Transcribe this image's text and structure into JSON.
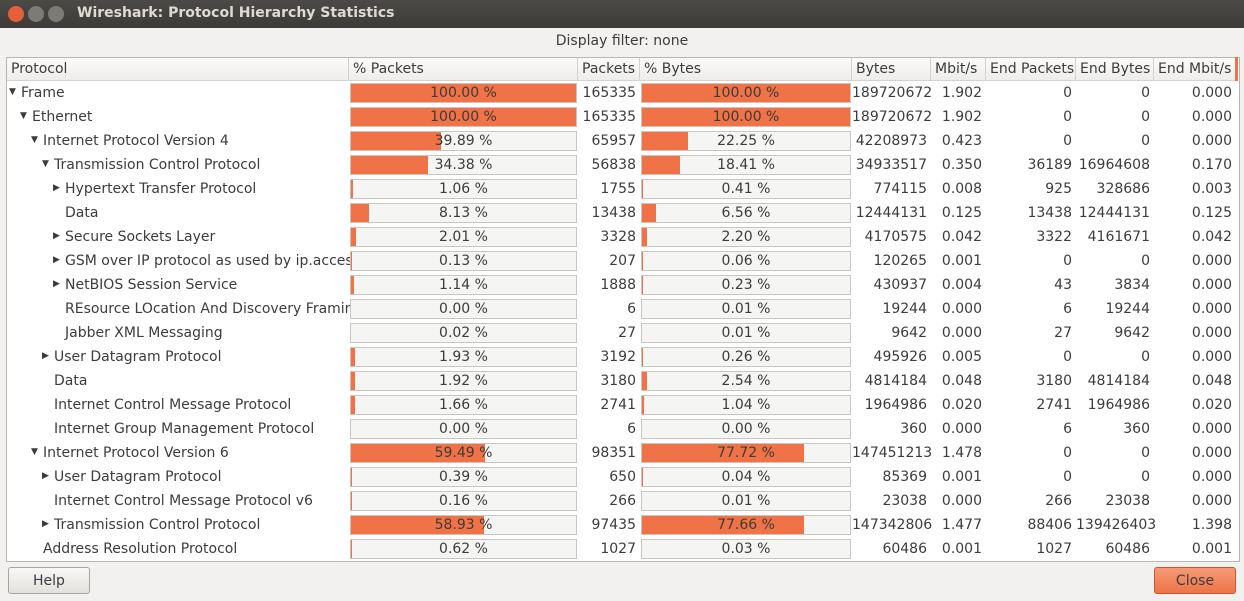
{
  "window": {
    "title": "Wireshark: Protocol Hierarchy Statistics"
  },
  "filter": "Display filter: none",
  "columns": [
    "Protocol",
    "% Packets",
    "Packets",
    "% Bytes",
    "Bytes",
    "Mbit/s",
    "End Packets",
    "End Bytes",
    "End Mbit/s"
  ],
  "tree": [
    {
      "name": "Frame",
      "cells": [
        {
          "value": 100.0,
          "label": "100.00 %"
        },
        "165335",
        {
          "value": 100.0,
          "label": "100.00 %"
        },
        "189720672",
        "1.902",
        "0",
        "0",
        "0.000"
      ],
      "children": [
        {
          "name": "Ethernet",
          "cells": [
            {
              "value": 100.0,
              "label": "100.00 %"
            },
            "165335",
            {
              "value": 100.0,
              "label": "100.00 %"
            },
            "189720672",
            "1.902",
            "0",
            "0",
            "0.000"
          ],
          "children": [
            {
              "name": "Internet Protocol Version 4",
              "cells": [
                {
                  "value": 39.89,
                  "label": "39.89 %"
                },
                "65957",
                {
                  "value": 22.25,
                  "label": "22.25 %"
                },
                "42208973",
                "0.423",
                "0",
                "0",
                "0.000"
              ],
              "children": [
                {
                  "name": "Transmission Control Protocol",
                  "cells": [
                    {
                      "value": 34.38,
                      "label": "34.38 %"
                    },
                    "56838",
                    {
                      "value": 18.41,
                      "label": "18.41 %"
                    },
                    "34933517",
                    "0.350",
                    "36189",
                    "16964608",
                    "0.170"
                  ],
                  "children": [
                    {
                      "name": "Hypertext Transfer Protocol",
                      "expanded": false,
                      "cells": [
                        {
                          "value": 1.06,
                          "label": "1.06 %"
                        },
                        "1755",
                        {
                          "value": 0.41,
                          "label": "0.41 %"
                        },
                        "774115",
                        "0.008",
                        "925",
                        "328686",
                        "0.003"
                      ]
                    },
                    {
                      "name": "Data",
                      "cells": [
                        {
                          "value": 8.13,
                          "label": "8.13 %"
                        },
                        "13438",
                        {
                          "value": 6.56,
                          "label": "6.56 %"
                        },
                        "12444131",
                        "0.125",
                        "13438",
                        "12444131",
                        "0.125"
                      ]
                    },
                    {
                      "name": "Secure Sockets Layer",
                      "expanded": false,
                      "cells": [
                        {
                          "value": 2.01,
                          "label": "2.01 %"
                        },
                        "3328",
                        {
                          "value": 2.2,
                          "label": "2.20 %"
                        },
                        "4170575",
                        "0.042",
                        "3322",
                        "4161671",
                        "0.042"
                      ]
                    },
                    {
                      "name": "GSM over IP protocol as used by ip.access",
                      "expanded": false,
                      "cells": [
                        {
                          "value": 0.13,
                          "label": "0.13 %"
                        },
                        "207",
                        {
                          "value": 0.06,
                          "label": "0.06 %"
                        },
                        "120265",
                        "0.001",
                        "0",
                        "0",
                        "0.000"
                      ]
                    },
                    {
                      "name": "NetBIOS Session Service",
                      "expanded": false,
                      "cells": [
                        {
                          "value": 1.14,
                          "label": "1.14 %"
                        },
                        "1888",
                        {
                          "value": 0.23,
                          "label": "0.23 %"
                        },
                        "430937",
                        "0.004",
                        "43",
                        "3834",
                        "0.000"
                      ]
                    },
                    {
                      "name": "REsource LOcation And Discovery Framing",
                      "cells": [
                        {
                          "value": 0.0,
                          "label": "0.00 %"
                        },
                        "6",
                        {
                          "value": 0.01,
                          "label": "0.01 %"
                        },
                        "19244",
                        "0.000",
                        "6",
                        "19244",
                        "0.000"
                      ]
                    },
                    {
                      "name": "Jabber XML Messaging",
                      "cells": [
                        {
                          "value": 0.02,
                          "label": "0.02 %"
                        },
                        "27",
                        {
                          "value": 0.01,
                          "label": "0.01 %"
                        },
                        "9642",
                        "0.000",
                        "27",
                        "9642",
                        "0.000"
                      ]
                    }
                  ]
                },
                {
                  "name": "User Datagram Protocol",
                  "expanded": false,
                  "cells": [
                    {
                      "value": 1.93,
                      "label": "1.93 %"
                    },
                    "3192",
                    {
                      "value": 0.26,
                      "label": "0.26 %"
                    },
                    "495926",
                    "0.005",
                    "0",
                    "0",
                    "0.000"
                  ]
                },
                {
                  "name": "Data",
                  "cells": [
                    {
                      "value": 1.92,
                      "label": "1.92 %"
                    },
                    "3180",
                    {
                      "value": 2.54,
                      "label": "2.54 %"
                    },
                    "4814184",
                    "0.048",
                    "3180",
                    "4814184",
                    "0.048"
                  ]
                },
                {
                  "name": "Internet Control Message Protocol",
                  "cells": [
                    {
                      "value": 1.66,
                      "label": "1.66 %"
                    },
                    "2741",
                    {
                      "value": 1.04,
                      "label": "1.04 %"
                    },
                    "1964986",
                    "0.020",
                    "2741",
                    "1964986",
                    "0.020"
                  ]
                },
                {
                  "name": "Internet Group Management Protocol",
                  "cells": [
                    {
                      "value": 0.0,
                      "label": "0.00 %"
                    },
                    "6",
                    {
                      "value": 0.0,
                      "label": "0.00 %"
                    },
                    "360",
                    "0.000",
                    "6",
                    "360",
                    "0.000"
                  ]
                }
              ]
            },
            {
              "name": "Internet Protocol Version 6",
              "cells": [
                {
                  "value": 59.49,
                  "label": "59.49 %"
                },
                "98351",
                {
                  "value": 77.72,
                  "label": "77.72 %"
                },
                "147451213",
                "1.478",
                "0",
                "0",
                "0.000"
              ],
              "children": [
                {
                  "name": "User Datagram Protocol",
                  "expanded": false,
                  "cells": [
                    {
                      "value": 0.39,
                      "label": "0.39 %"
                    },
                    "650",
                    {
                      "value": 0.04,
                      "label": "0.04 %"
                    },
                    "85369",
                    "0.001",
                    "0",
                    "0",
                    "0.000"
                  ]
                },
                {
                  "name": "Internet Control Message Protocol v6",
                  "cells": [
                    {
                      "value": 0.16,
                      "label": "0.16 %"
                    },
                    "266",
                    {
                      "value": 0.01,
                      "label": "0.01 %"
                    },
                    "23038",
                    "0.000",
                    "266",
                    "23038",
                    "0.000"
                  ]
                },
                {
                  "name": "Transmission Control Protocol",
                  "expanded": false,
                  "cells": [
                    {
                      "value": 58.93,
                      "label": "58.93 %"
                    },
                    "97435",
                    {
                      "value": 77.66,
                      "label": "77.66 %"
                    },
                    "147342806",
                    "1.477",
                    "88406",
                    "139426403",
                    "1.398"
                  ]
                }
              ]
            },
            {
              "name": "Address Resolution Protocol",
              "cells": [
                {
                  "value": 0.62,
                  "label": "0.62 %"
                },
                "1027",
                {
                  "value": 0.03,
                  "label": "0.03 %"
                },
                "60486",
                "0.001",
                "1027",
                "60486",
                "0.001"
              ]
            }
          ]
        }
      ]
    }
  ],
  "buttons": [
    "Help",
    "Close"
  ]
}
